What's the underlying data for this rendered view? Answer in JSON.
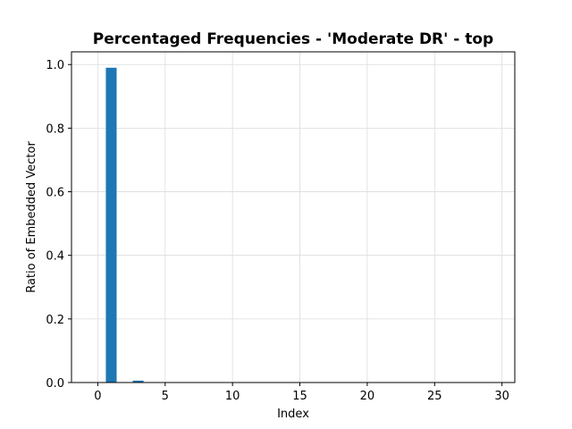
{
  "chart_data": {
    "type": "bar",
    "title": "Percentaged Frequencies - 'Moderate DR' - top",
    "xlabel": "Index",
    "ylabel": "Ratio of Embedded Vector",
    "x": [
      0,
      1,
      2,
      3,
      4,
      5,
      6,
      7,
      8,
      9,
      10,
      11,
      12,
      13,
      14,
      15,
      16,
      17,
      18,
      19,
      20,
      21,
      22,
      23,
      24,
      25,
      26,
      27,
      28,
      29
    ],
    "values": [
      0,
      0.99,
      0,
      0.006,
      0,
      0,
      0,
      0,
      0,
      0,
      0,
      0,
      0,
      0,
      0,
      0,
      0,
      0,
      0,
      0,
      0,
      0,
      0,
      0,
      0,
      0,
      0,
      0,
      0,
      0
    ],
    "xlim": [
      -1.95,
      30.95
    ],
    "ylim": [
      0,
      1.04
    ],
    "xticks": [
      0,
      5,
      10,
      15,
      20,
      25,
      30
    ],
    "xtick_labels": [
      "0",
      "5",
      "10",
      "15",
      "20",
      "25",
      "30"
    ],
    "yticks": [
      0.0,
      0.2,
      0.4,
      0.6,
      0.8,
      1.0
    ],
    "ytick_labels": [
      "0.0",
      "0.2",
      "0.4",
      "0.6",
      "0.8",
      "1.0"
    ],
    "grid": true,
    "bar_color": "#1f77b4"
  }
}
